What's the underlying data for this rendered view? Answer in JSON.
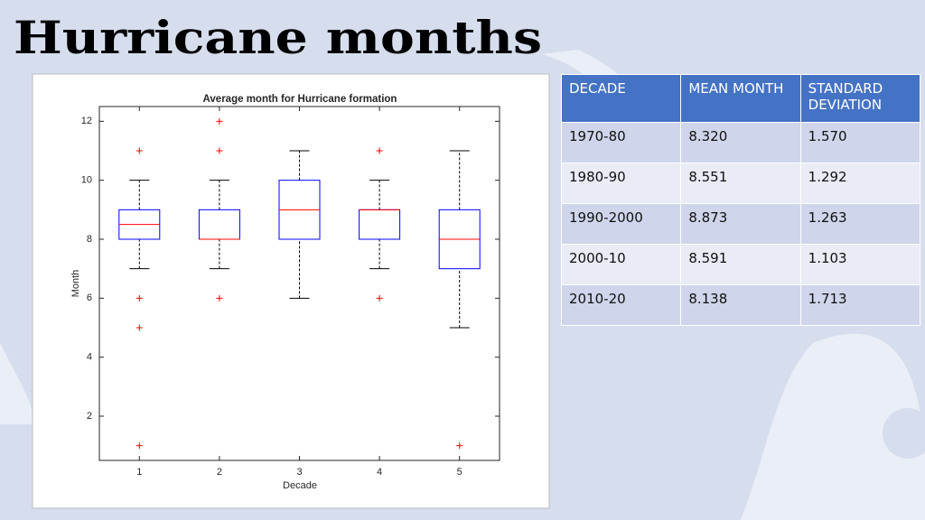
{
  "title": "Hurricane months",
  "chart_data": {
    "type": "box",
    "title": "Average month for Hurricane formation",
    "xlabel": "Decade",
    "ylabel": "Month",
    "xlim": [
      0.5,
      5.5
    ],
    "xticks": [
      1,
      2,
      3,
      4,
      5
    ],
    "ylim": [
      0.5,
      12.5
    ],
    "yticks": [
      2,
      4,
      6,
      8,
      10,
      12
    ],
    "box_color": "#0000ff",
    "median_color": "#ff0000",
    "flier_color": "#ff0000",
    "whisker_color": "#000000",
    "boxes": [
      {
        "x": 1,
        "whislo": 7,
        "q1": 8,
        "med": 8.5,
        "q3": 9,
        "whishi": 10,
        "fliers": [
          11,
          6,
          5,
          1
        ]
      },
      {
        "x": 2,
        "whislo": 7,
        "q1": 8,
        "med": 8,
        "q3": 9,
        "whishi": 10,
        "fliers": [
          12,
          11,
          6
        ]
      },
      {
        "x": 3,
        "whislo": 6,
        "q1": 8,
        "med": 9,
        "q3": 10,
        "whishi": 11,
        "fliers": []
      },
      {
        "x": 4,
        "whislo": 7,
        "q1": 8,
        "med": 9,
        "q3": 9,
        "whishi": 10,
        "fliers": [
          11,
          6
        ]
      },
      {
        "x": 5,
        "whislo": 5,
        "q1": 7,
        "med": 8,
        "q3": 9,
        "whishi": 11,
        "fliers": [
          1
        ]
      }
    ]
  },
  "table": {
    "header": [
      "DECADE",
      "MEAN MONTH",
      "STANDARD DEVIATION"
    ],
    "rows": [
      [
        "1970-80",
        "8.320",
        "1.570"
      ],
      [
        "1980-90",
        "8.551",
        "1.292"
      ],
      [
        "1990-2000",
        "8.873",
        "1.263"
      ],
      [
        "2000-10",
        "8.591",
        "1.103"
      ],
      [
        "2010-20",
        "8.138",
        "1.713"
      ]
    ]
  }
}
